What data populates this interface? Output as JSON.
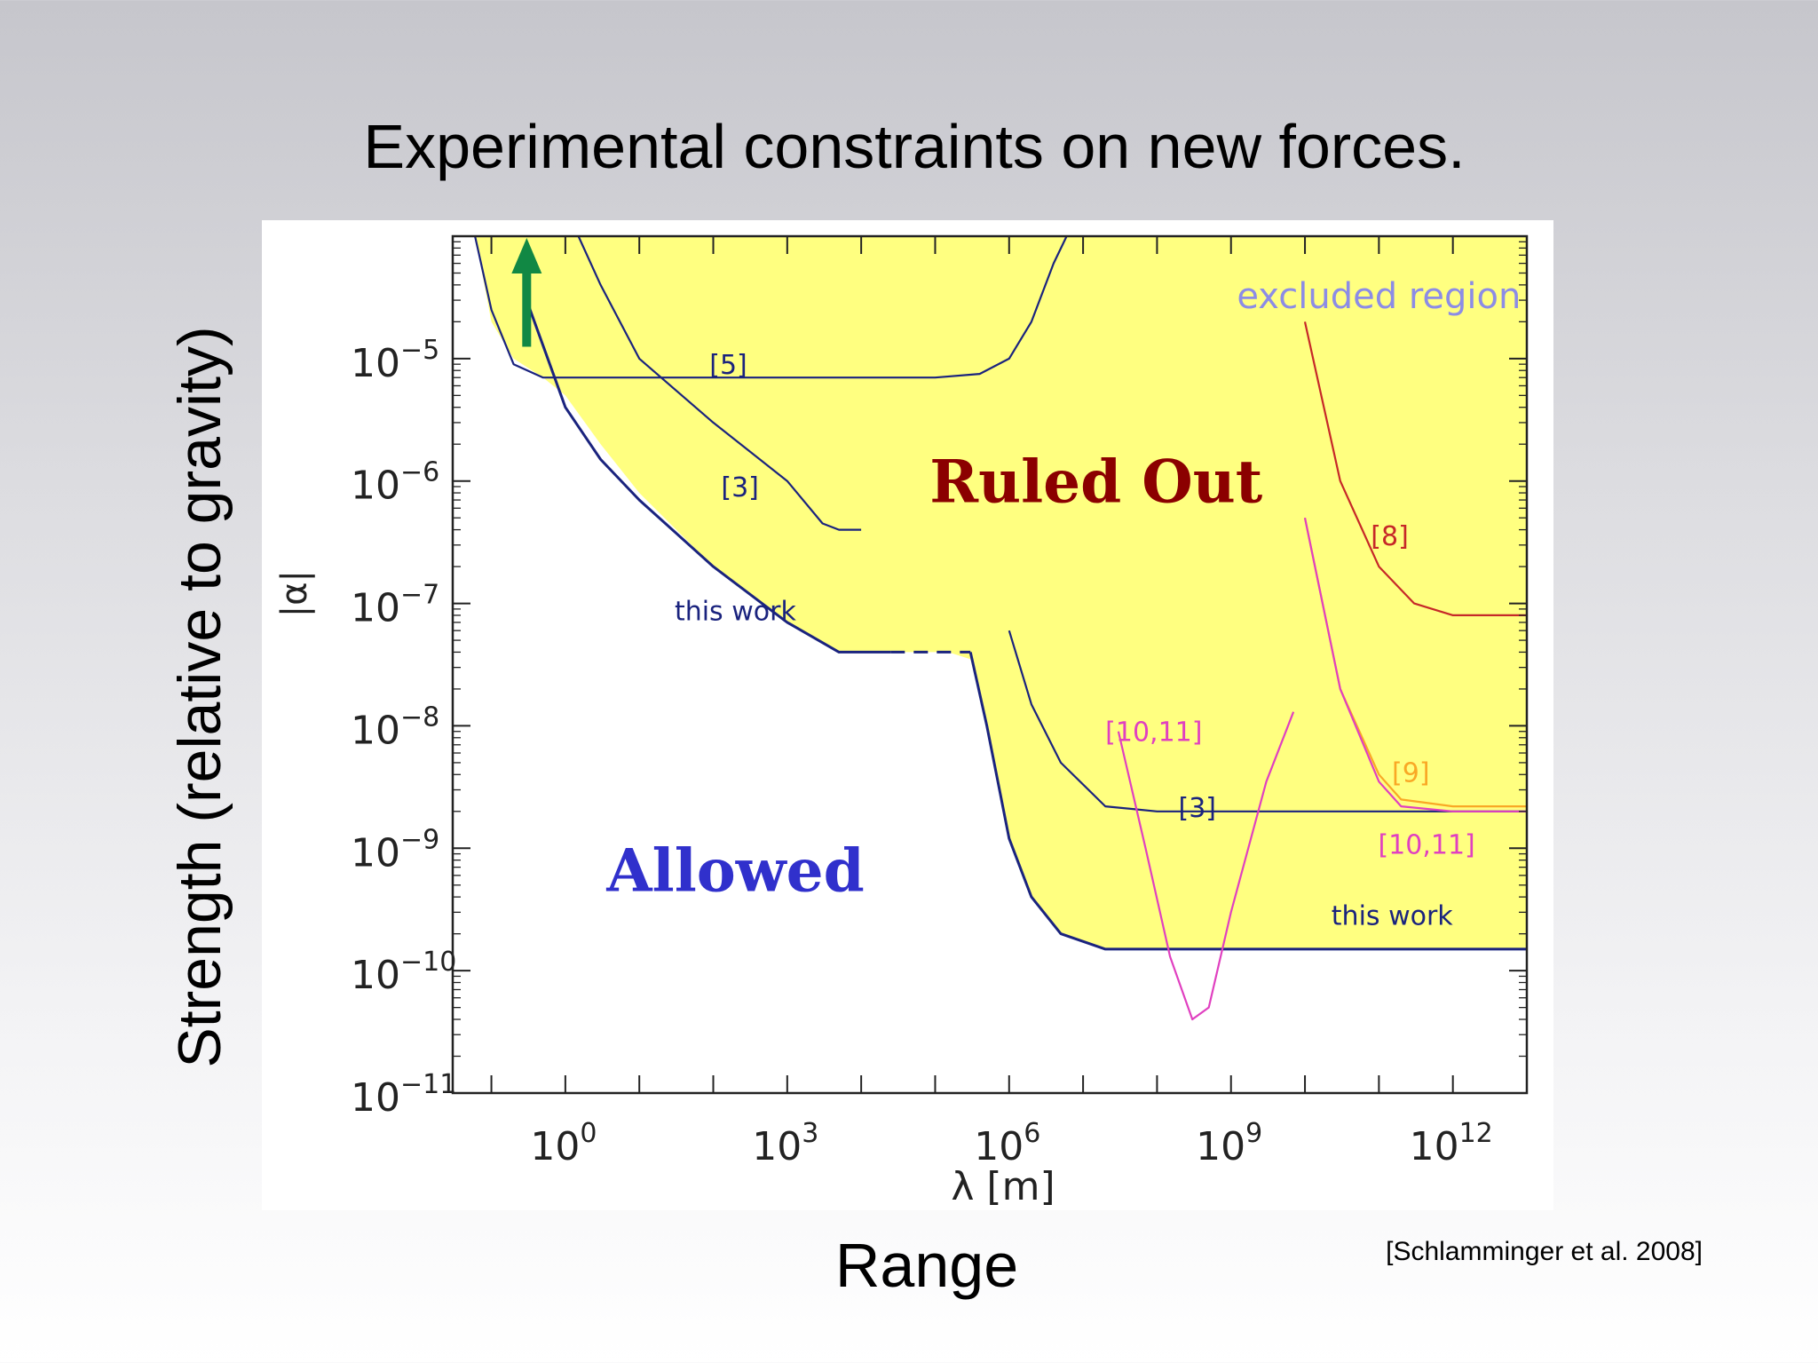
{
  "slide": {
    "title": "Experimental constraints on new forces.",
    "y_title": "Strength (relative to gravity)",
    "x_title": "Range",
    "citation": "[Schlamminger et al. 2008]"
  },
  "colors": {
    "excluded_fill": "#ffff80",
    "this_work": "#1a237e",
    "ref_5_3": "#1a237e",
    "ref_8": "#c62828",
    "ref_9": "#f9a825",
    "ref_10_11": "#e040c0",
    "excluded_label": "#8c8ce6",
    "ruled_out": "#8b0000",
    "allowed": "#3030cc",
    "arrow": "#118844"
  },
  "chart_data": {
    "type": "line",
    "xscale": "log",
    "yscale": "log",
    "xlim": [
      0.03,
      10000000000000.0
    ],
    "ylim": [
      1e-11,
      0.0001
    ],
    "xlabel": "λ [m]",
    "ylabel": "|α|",
    "x_ticks": [
      {
        "value": 1,
        "base": "10",
        "exp": "0"
      },
      {
        "value": 1000,
        "base": "10",
        "exp": "3"
      },
      {
        "value": 1000000,
        "base": "10",
        "exp": "6"
      },
      {
        "value": 1000000000,
        "base": "10",
        "exp": "9"
      },
      {
        "value": 1000000000000,
        "base": "10",
        "exp": "12"
      }
    ],
    "y_ticks": [
      {
        "value": 1e-05,
        "base": "10",
        "exp": "−5"
      },
      {
        "value": 1e-06,
        "base": "10",
        "exp": "−6"
      },
      {
        "value": 1e-07,
        "base": "10",
        "exp": "−7"
      },
      {
        "value": 1e-08,
        "base": "10",
        "exp": "−8"
      },
      {
        "value": 1e-09,
        "base": "10",
        "exp": "−9"
      },
      {
        "value": 1e-10,
        "base": "10",
        "exp": "−10"
      },
      {
        "value": 1e-11,
        "base": "10",
        "exp": "−11"
      }
    ],
    "excluded_region": [
      [
        0.03,
        0.0001
      ],
      [
        0.06,
        0.0001
      ],
      [
        0.1,
        2e-05
      ],
      [
        0.2,
        1e-05
      ],
      [
        0.5,
        7e-06
      ],
      [
        1,
        5e-06
      ],
      [
        3,
        2e-06
      ],
      [
        10,
        8e-07
      ],
      [
        100,
        2e-07
      ],
      [
        1000,
        7e-08
      ],
      [
        5000,
        4e-08
      ],
      [
        25000,
        4e-08
      ],
      [
        60000,
        4e-08
      ],
      [
        150000,
        4e-08
      ],
      [
        300000,
        3.5e-08
      ],
      [
        500000,
        1e-08
      ],
      [
        1000000.0,
        1.2e-09
      ],
      [
        2000000.0,
        4e-10
      ],
      [
        5000000.0,
        2e-10
      ],
      [
        20000000.0,
        1.5e-10
      ],
      [
        10000000000000.0,
        1.5e-10
      ],
      [
        10000000000000.0,
        0.0001
      ]
    ],
    "series": [
      {
        "name": "this work",
        "key": "this_work_lab",
        "color_key": "this_work",
        "dashed": false,
        "points": [
          [
            0.3,
            3e-05
          ],
          [
            1,
            4e-06
          ],
          [
            3,
            1.5e-06
          ],
          [
            10,
            7e-07
          ],
          [
            100,
            2e-07
          ],
          [
            1000,
            7e-08
          ],
          [
            5000,
            4e-08
          ],
          [
            25000,
            4e-08
          ]
        ]
      },
      {
        "name": "",
        "key": "this_work_bridge",
        "color_key": "this_work",
        "dashed": true,
        "points": [
          [
            25000,
            4e-08
          ],
          [
            300000,
            4e-08
          ]
        ]
      },
      {
        "name": "this work",
        "key": "this_work_space",
        "color_key": "this_work",
        "dashed": false,
        "points": [
          [
            300000,
            4e-08
          ],
          [
            500000,
            1e-08
          ],
          [
            1000000.0,
            1.2e-09
          ],
          [
            2000000.0,
            4e-10
          ],
          [
            5000000.0,
            2e-10
          ],
          [
            20000000.0,
            1.5e-10
          ],
          [
            10000000000000.0,
            1.5e-10
          ]
        ]
      },
      {
        "name": "[5]",
        "key": "ref5",
        "color_key": "ref_5_3",
        "dashed": false,
        "points": [
          [
            0.06,
            0.0001
          ],
          [
            0.1,
            2.5e-05
          ],
          [
            0.2,
            9e-06
          ],
          [
            0.5,
            7e-06
          ],
          [
            2,
            7e-06
          ],
          [
            100,
            7e-06
          ],
          [
            100000,
            7e-06
          ],
          [
            400000,
            7.5e-06
          ],
          [
            1000000,
            1e-05
          ],
          [
            2000000,
            2e-05
          ],
          [
            4000000,
            6e-05
          ],
          [
            6000000,
            0.0001
          ]
        ]
      },
      {
        "name": "[3]",
        "key": "ref3_lab",
        "color_key": "ref_5_3",
        "dashed": false,
        "points": [
          [
            1.5,
            0.0001
          ],
          [
            3,
            4e-05
          ],
          [
            10,
            1e-05
          ],
          [
            100,
            3e-06
          ],
          [
            1000,
            1e-06
          ],
          [
            3000,
            4.5e-07
          ],
          [
            5000,
            4e-07
          ],
          [
            10000,
            4e-07
          ]
        ]
      },
      {
        "name": "[3]",
        "key": "ref3_space",
        "color_key": "ref_5_3",
        "dashed": false,
        "points": [
          [
            1000000.0,
            6e-08
          ],
          [
            2000000.0,
            1.5e-08
          ],
          [
            5000000.0,
            5e-09
          ],
          [
            20000000.0,
            2.2e-09
          ],
          [
            100000000.0,
            2e-09
          ],
          [
            1000000000.0,
            2e-09
          ],
          [
            10000000000000.0,
            2e-09
          ]
        ]
      },
      {
        "name": "[8]",
        "key": "ref8",
        "color_key": "ref_8",
        "dashed": false,
        "points": [
          [
            10000000000.0,
            2e-05
          ],
          [
            30000000000.0,
            1e-06
          ],
          [
            100000000000.0,
            2e-07
          ],
          [
            300000000000.0,
            1e-07
          ],
          [
            1000000000000.0,
            8e-08
          ],
          [
            10000000000000.0,
            8e-08
          ]
        ]
      },
      {
        "name": "[9]",
        "key": "ref9",
        "color_key": "ref_9",
        "dashed": false,
        "points": [
          [
            10000000000.0,
            5e-07
          ],
          [
            30000000000.0,
            2e-08
          ],
          [
            100000000000.0,
            4e-09
          ],
          [
            200000000000.0,
            2.5e-09
          ],
          [
            1000000000000.0,
            2.2e-09
          ],
          [
            10000000000000.0,
            2.2e-09
          ]
        ]
      },
      {
        "name": "[10,11]",
        "key": "ref1011_steep",
        "color_key": "ref_10_11",
        "dashed": false,
        "points": [
          [
            10000000000.0,
            5e-07
          ],
          [
            30000000000.0,
            2e-08
          ],
          [
            100000000000.0,
            3.5e-09
          ],
          [
            200000000000.0,
            2.2e-09
          ],
          [
            1000000000000.0,
            2e-09
          ],
          [
            10000000000000.0,
            2e-09
          ]
        ]
      },
      {
        "name": "[10,11]",
        "key": "ref1011_v",
        "color_key": "ref_10_11",
        "dashed": false,
        "points": [
          [
            30000000.0,
            9e-09
          ],
          [
            70000000.0,
            1e-09
          ],
          [
            150000000.0,
            1.3e-10
          ],
          [
            300000000.0,
            4e-11
          ],
          [
            500000000.0,
            5e-11
          ],
          [
            1000000000.0,
            3e-10
          ],
          [
            3000000000.0,
            3.5e-09
          ],
          [
            7000000000.0,
            1.3e-08
          ]
        ]
      }
    ],
    "annotations": {
      "ref5": "[5]",
      "ref3_lab": "[3]",
      "this_work_lab": "this work",
      "ref3_space": "[3]",
      "ref1011_v": "[10,11]",
      "ref8": "[8]",
      "ref9": "[9]",
      "ref1011_steep": "[10,11]",
      "this_work_space": "this work",
      "excluded": "excluded region",
      "ruled_out": "Ruled Out",
      "allowed": "Allowed"
    }
  }
}
